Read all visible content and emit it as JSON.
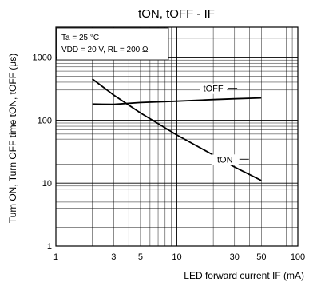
{
  "chart_data": {
    "type": "line",
    "title": "tON, tOFF - IF",
    "xlabel": "LED forward current IF (mA)",
    "ylabel": "Turn ON, Turn OFF time tON, tOFF (µs)",
    "x_scale": "log",
    "y_scale": "log",
    "xlim": [
      1,
      100
    ],
    "ylim": [
      1,
      3000
    ],
    "x_ticks": [
      1,
      3,
      5,
      10,
      30,
      50,
      100
    ],
    "y_ticks": [
      1,
      10,
      100,
      1000
    ],
    "grid": true,
    "conditions": [
      "Ta = 25 °C",
      "VDD = 20 V, RL = 200 Ω"
    ],
    "series": [
      {
        "name": "tOFF",
        "x": [
          2,
          3,
          5,
          10,
          20,
          30,
          50
        ],
        "y": [
          180,
          178,
          190,
          200,
          212,
          218,
          225
        ]
      },
      {
        "name": "tON",
        "x": [
          2,
          3,
          5,
          10,
          20,
          30,
          50
        ],
        "y": [
          450,
          250,
          130,
          58,
          28,
          18,
          11
        ]
      }
    ]
  }
}
